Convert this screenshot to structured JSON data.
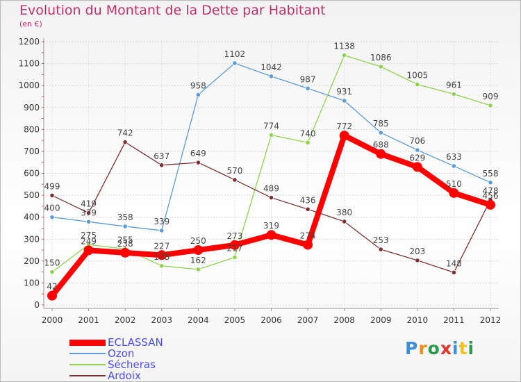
{
  "title": "Evolution du Montant de la Dette par Habitant",
  "subtitle": "(en €)",
  "logo": {
    "text": "Proxiti",
    "letters": [
      {
        "ch": "P",
        "color": "#3d8fd6"
      },
      {
        "ch": "r",
        "color": "#f08a1c"
      },
      {
        "ch": "o",
        "color": "#2a9b4a"
      },
      {
        "ch": "x",
        "color": "#e0352b"
      },
      {
        "ch": "i",
        "color": "#3d8fd6"
      },
      {
        "ch": "t",
        "color": "#f0c21c"
      },
      {
        "ch": "i",
        "color": "#2a9b4a"
      }
    ]
  },
  "chart_data": {
    "type": "line",
    "x": [
      "2000",
      "2001",
      "2002",
      "2003",
      "2004",
      "2005",
      "2006",
      "2007",
      "2008",
      "2009",
      "2010",
      "2011",
      "2012"
    ],
    "ylim": [
      0,
      1200
    ],
    "yticks": [
      0,
      100,
      200,
      300,
      400,
      500,
      600,
      700,
      800,
      900,
      1000,
      1100,
      1200
    ],
    "grid": true,
    "legend_position": "bottom-left",
    "series": [
      {
        "name": "ECLASSAN",
        "color": "#ff0000",
        "values": [
          42,
          249,
          238,
          227,
          250,
          273,
          319,
          274,
          772,
          688,
          629,
          510,
          456
        ]
      },
      {
        "name": "Ozon",
        "color": "#5b9bd5",
        "values": [
          400,
          379,
          358,
          339,
          958,
          1102,
          1042,
          987,
          931,
          785,
          706,
          633,
          558
        ]
      },
      {
        "name": "Sécheras",
        "color": "#8fd14f",
        "values": [
          150,
          275,
          255,
          178,
          162,
          217,
          774,
          740,
          1138,
          1086,
          1005,
          961,
          909
        ]
      },
      {
        "name": "Ardoix",
        "color": "#7b3131",
        "values": [
          499,
          419,
          742,
          637,
          649,
          570,
          489,
          436,
          380,
          253,
          203,
          148,
          478
        ]
      }
    ]
  }
}
